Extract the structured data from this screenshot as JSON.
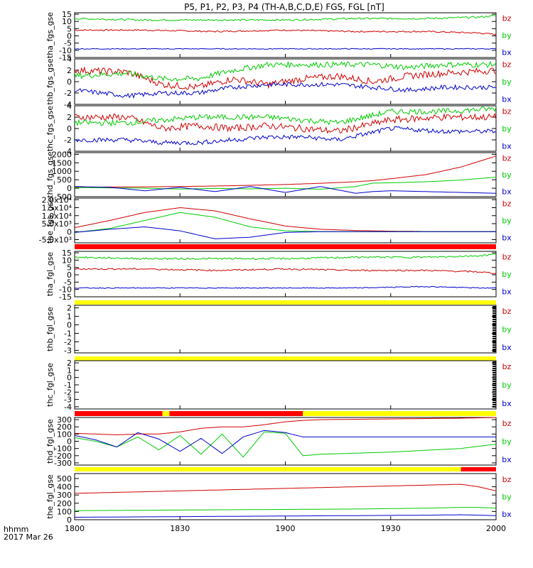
{
  "title": "P5, P1, P2, P3, P4 (TH-A,B,C,D,E) FGS, FGL [nT]",
  "time_axis": {
    "label_row1": "hhmm",
    "label_row2": "2017 Mar 26",
    "ticks": [
      "1800",
      "1830",
      "1900",
      "1930",
      "2000"
    ],
    "tick_values": [
      1080,
      1110,
      1140,
      1170,
      1200
    ],
    "range": [
      1080,
      1200
    ],
    "units": "minutes of day"
  },
  "colors": {
    "bz": "#d00000",
    "by": "#00cc00",
    "bx": "#0000cc",
    "bar_red": "#ff0000",
    "bar_yellow": "#ffff00"
  },
  "legend": [
    "bz",
    "by",
    "bx"
  ],
  "chart_data": [
    {
      "type": "line",
      "name": "tha_fgs_gse",
      "ylabel": "tha_fgs_gse",
      "ylim": [
        -15,
        16
      ],
      "yticks": [
        "15",
        "10",
        "5",
        "0",
        "-5",
        "-10",
        "-15"
      ],
      "ytick_values": [
        15,
        10,
        5,
        0,
        -5,
        -10,
        -15
      ],
      "x": [
        1080,
        1100,
        1120,
        1140,
        1160,
        1180,
        1195,
        1200
      ],
      "series": [
        {
          "name": "bz",
          "values": [
            4,
            4,
            3,
            4,
            3,
            3,
            2,
            1
          ],
          "noise": 0.5
        },
        {
          "name": "by",
          "values": [
            12,
            11,
            11,
            11,
            12,
            12,
            13,
            14
          ],
          "noise": 0.6
        },
        {
          "name": "bx",
          "values": [
            -9,
            -9,
            -9,
            -9,
            -9,
            -9,
            -9,
            -9
          ],
          "noise": 0.3
        }
      ]
    },
    {
      "type": "line",
      "name": "thb_fgs_gse",
      "ylabel": "thb_fgs_gse",
      "ylim": [
        -4,
        4
      ],
      "yticks": [
        "4",
        "2",
        "0",
        "-2",
        "-4"
      ],
      "ytick_values": [
        4,
        2,
        0,
        -2,
        -4
      ],
      "x": [
        1080,
        1095,
        1105,
        1115,
        1125,
        1135,
        1145,
        1155,
        1165,
        1175,
        1185,
        1200
      ],
      "series": [
        {
          "name": "bz",
          "values": [
            2,
            1.7,
            -0.5,
            -1,
            0.5,
            -0.5,
            0.5,
            1,
            0,
            1,
            1.5,
            2
          ],
          "noise": 0.6
        },
        {
          "name": "by",
          "values": [
            1,
            1.5,
            0.5,
            0.5,
            2,
            3,
            3,
            3,
            3,
            2.5,
            3,
            3
          ],
          "noise": 0.5
        },
        {
          "name": "bx",
          "values": [
            -1.5,
            -2.5,
            -2,
            -2,
            -1,
            -0.5,
            -0.5,
            -0.5,
            -1,
            -1.5,
            -1,
            -1
          ],
          "noise": 0.4
        }
      ]
    },
    {
      "type": "line",
      "name": "thc_fgs_gse",
      "ylabel": "thc_fgs_gse",
      "ylim": [
        -4,
        4
      ],
      "yticks": [
        "4",
        "2",
        "0",
        "-2",
        "-4"
      ],
      "ytick_values": [
        4,
        2,
        0,
        -2,
        -4
      ],
      "x": [
        1080,
        1095,
        1105,
        1115,
        1125,
        1135,
        1145,
        1155,
        1170,
        1185,
        1200
      ],
      "series": [
        {
          "name": "bz",
          "values": [
            2,
            2,
            0,
            0.5,
            0,
            0.5,
            0,
            -0.5,
            1.5,
            2,
            2
          ],
          "noise": 0.6
        },
        {
          "name": "by",
          "values": [
            1,
            1,
            1.5,
            2,
            2,
            2,
            1.5,
            1,
            3,
            3,
            3.5
          ],
          "noise": 0.5
        },
        {
          "name": "bx",
          "values": [
            -2,
            -2,
            -2.5,
            -2.5,
            -2,
            -1.5,
            -1.5,
            -2,
            0,
            -0.5,
            -0.5
          ],
          "noise": 0.4
        }
      ]
    },
    {
      "type": "line",
      "name": "thd_fgs_gse",
      "ylabel": "thd_fgs_gse",
      "ylim": [
        -500,
        2100
      ],
      "yticks": [
        "2000",
        "1500",
        "1000",
        "500",
        "0",
        "-500"
      ],
      "ytick_values": [
        2000,
        1500,
        1000,
        500,
        0,
        -500
      ],
      "x": [
        1080,
        1090,
        1100,
        1110,
        1120,
        1130,
        1140,
        1150,
        1160,
        1165,
        1170,
        1180,
        1190,
        1200
      ],
      "series": [
        {
          "name": "bz",
          "values": [
            60,
            70,
            80,
            100,
            130,
            170,
            220,
            290,
            380,
            450,
            560,
            800,
            1250,
            1900
          ]
        },
        {
          "name": "by",
          "values": [
            40,
            20,
            0,
            -50,
            -10,
            -40,
            0,
            -60,
            100,
            300,
            320,
            380,
            480,
            650
          ]
        },
        {
          "name": "bx",
          "values": [
            100,
            50,
            -150,
            50,
            -200,
            100,
            -250,
            100,
            -300,
            -200,
            -150,
            -200,
            -250,
            -300
          ]
        }
      ]
    },
    {
      "type": "line",
      "name": "the_fgs_gse",
      "ylabel": "the_fgs_gse",
      "ylim": [
        -7000,
        21000
      ],
      "yticks": [
        "2.0x10⁴",
        "1.5x10⁴",
        "1.0x10⁴",
        "5.0x10³",
        "0",
        "-5.0x10³"
      ],
      "ytick_values": [
        20000,
        15000,
        10000,
        5000,
        0,
        -5000
      ],
      "x": [
        1080,
        1090,
        1100,
        1110,
        1120,
        1130,
        1140,
        1150,
        1160,
        1170,
        1180,
        1190,
        1200
      ],
      "series": [
        {
          "name": "bz",
          "values": [
            2500,
            7000,
            12000,
            15000,
            13000,
            8000,
            3500,
            1500,
            700,
            300,
            100,
            0,
            0
          ]
        },
        {
          "name": "by",
          "values": [
            -500,
            2000,
            7000,
            12000,
            9000,
            3000,
            500,
            0,
            0,
            0,
            0,
            0,
            0
          ]
        },
        {
          "name": "bx",
          "values": [
            -500,
            1500,
            3000,
            500,
            -4500,
            -3500,
            -500,
            0,
            0,
            0,
            0,
            0,
            0
          ]
        }
      ]
    },
    {
      "type": "line",
      "name": "tha_fgl_gse",
      "ylabel": "tha_fgl_gse",
      "ylim": [
        -15,
        16
      ],
      "yticks": [
        "15",
        "10",
        "5",
        "0",
        "-5",
        "-10",
        "-15"
      ],
      "ytick_values": [
        15,
        10,
        5,
        0,
        -5,
        -10,
        -15
      ],
      "bar": [
        {
          "color": "red",
          "from": 1080,
          "to": 1200
        }
      ],
      "x": [
        1080,
        1100,
        1120,
        1140,
        1160,
        1180,
        1195,
        1200
      ],
      "series": [
        {
          "name": "bz",
          "values": [
            4,
            4,
            3,
            4,
            3,
            3,
            2,
            1
          ],
          "noise": 0.5
        },
        {
          "name": "by",
          "values": [
            12,
            11,
            11,
            11,
            12,
            12,
            13,
            14
          ],
          "noise": 0.6
        },
        {
          "name": "bx",
          "values": [
            -9,
            -9,
            -9,
            -9,
            -9,
            -8,
            -9,
            -9
          ],
          "noise": 0.3
        }
      ]
    },
    {
      "type": "line",
      "name": "thb_fgl_gse",
      "ylabel": "thb_fgl_gse",
      "ylim": [
        -3.3,
        2.3
      ],
      "yticks": [
        "2",
        "1",
        "0",
        "-1",
        "-2",
        "-3"
      ],
      "ytick_values": [
        2,
        1,
        0,
        -1,
        -2,
        -3
      ],
      "bar": [
        {
          "color": "yellow",
          "from": 1080,
          "to": 1200
        }
      ],
      "x": [],
      "series": []
    },
    {
      "type": "line",
      "name": "thc_fgl_gse",
      "ylabel": "thc_fgl_gse",
      "ylim": [
        -4.3,
        2.3
      ],
      "yticks": [
        "2",
        "1",
        "0",
        "-1",
        "-2",
        "-3",
        "-4"
      ],
      "ytick_values": [
        2,
        1,
        0,
        -1,
        -2,
        -3,
        -4
      ],
      "bar": [
        {
          "color": "yellow",
          "from": 1080,
          "to": 1200
        }
      ],
      "x": [],
      "series": []
    },
    {
      "type": "line",
      "name": "thd_fgl_gse",
      "ylabel": "thd_fgl_gse",
      "ylim": [
        -330,
        330
      ],
      "yticks": [
        "300",
        "200",
        "100",
        "0",
        "-100",
        "-200",
        "-300"
      ],
      "ytick_values": [
        300,
        200,
        100,
        0,
        -100,
        -200,
        -300
      ],
      "bar": [
        {
          "color": "red",
          "from": 1080,
          "to": 1105
        },
        {
          "color": "yellow",
          "from": 1105,
          "to": 1107
        },
        {
          "color": "red",
          "from": 1107,
          "to": 1145
        },
        {
          "color": "yellow",
          "from": 1145,
          "to": 1200
        }
      ],
      "x": [
        1080,
        1086,
        1092,
        1098,
        1104,
        1110,
        1116,
        1122,
        1128,
        1134,
        1140,
        1145,
        1150,
        1170,
        1190,
        1200
      ],
      "series": [
        {
          "name": "bz",
          "values": [
            110,
            100,
            90,
            100,
            100,
            130,
            180,
            200,
            200,
            230,
            270,
            290,
            300,
            310,
            320,
            330
          ]
        },
        {
          "name": "by",
          "values": [
            50,
            0,
            -80,
            60,
            -120,
            80,
            -180,
            100,
            -220,
            130,
            110,
            -200,
            -180,
            -150,
            -100,
            -40
          ]
        },
        {
          "name": "bx",
          "values": [
            80,
            20,
            -80,
            120,
            30,
            -140,
            40,
            -170,
            60,
            150,
            120,
            60,
            60,
            60,
            60,
            60
          ]
        }
      ]
    },
    {
      "type": "line",
      "name": "the_fgl_gse",
      "ylabel": "the_fgl_gse",
      "ylim": [
        0,
        560
      ],
      "yticks": [
        "500",
        "400",
        "300",
        "200",
        "100",
        "0"
      ],
      "ytick_values": [
        500,
        400,
        300,
        200,
        100,
        0
      ],
      "bar": [
        {
          "color": "yellow",
          "from": 1080,
          "to": 1190
        },
        {
          "color": "red",
          "from": 1190,
          "to": 1200
        }
      ],
      "x": [
        1080,
        1100,
        1120,
        1140,
        1160,
        1180,
        1190,
        1195,
        1200
      ],
      "series": [
        {
          "name": "bz",
          "values": [
            320,
            340,
            360,
            380,
            400,
            420,
            430,
            400,
            350
          ]
        },
        {
          "name": "by",
          "values": [
            110,
            115,
            120,
            125,
            130,
            140,
            150,
            150,
            140
          ]
        },
        {
          "name": "bx",
          "values": [
            30,
            35,
            40,
            45,
            50,
            55,
            60,
            55,
            50
          ]
        }
      ]
    }
  ]
}
